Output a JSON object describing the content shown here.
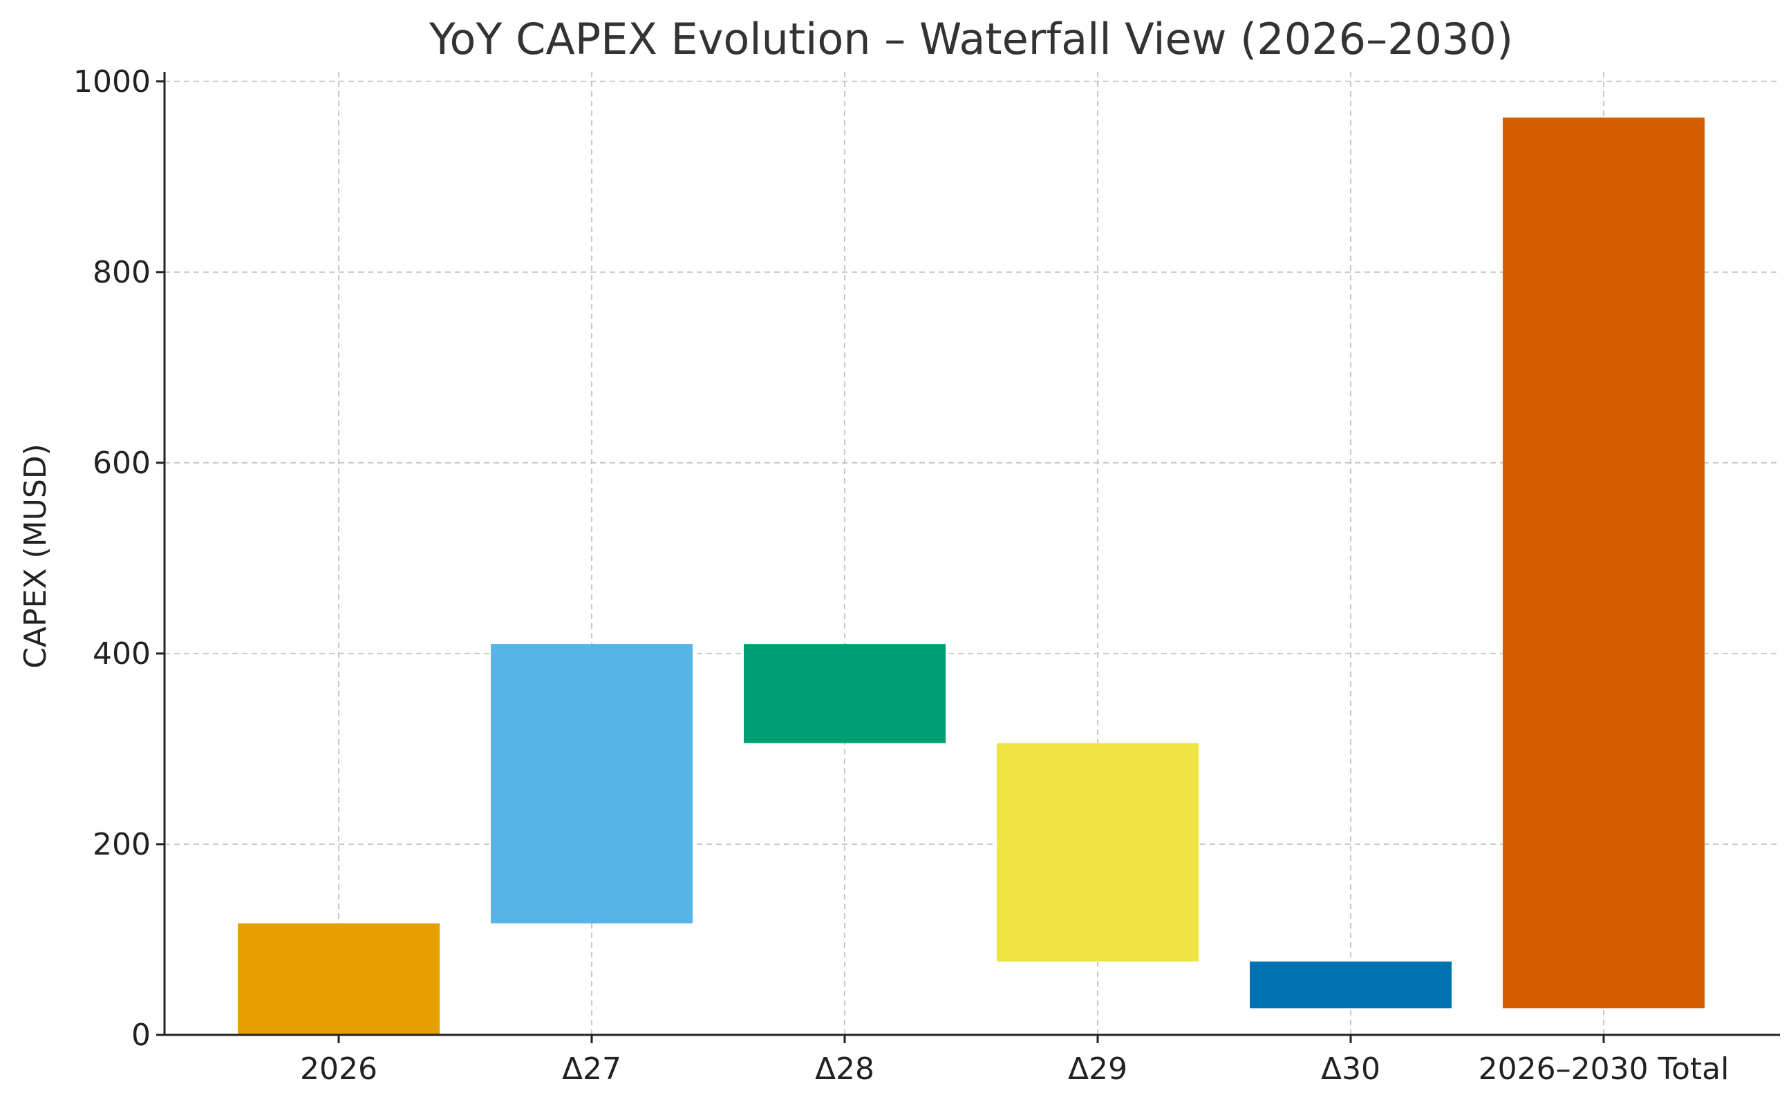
{
  "chart_data": {
    "type": "bar",
    "variant": "waterfall",
    "title": "YoY CAPEX Evolution – Waterfall View (2026–2030)",
    "xlabel": "",
    "ylabel": "CAPEX (MUSD)",
    "ylim": [
      0,
      1010
    ],
    "yticks": [
      0,
      200,
      400,
      600,
      800,
      1000
    ],
    "grid": true,
    "categories": [
      "2026",
      "Δ27",
      "Δ28",
      "Δ29",
      "Δ30",
      "2026–2030 Total"
    ],
    "bars": [
      {
        "category": "2026",
        "base": 0,
        "top": 117,
        "color": "#E69F00"
      },
      {
        "category": "Δ27",
        "base": 117,
        "top": 410,
        "color": "#56B4E9"
      },
      {
        "category": "Δ28",
        "base": 306,
        "top": 410,
        "color": "#009E73"
      },
      {
        "category": "Δ29",
        "base": 77,
        "top": 306,
        "color": "#F0E442"
      },
      {
        "category": "Δ30",
        "base": 28,
        "top": 77,
        "color": "#0072B2"
      },
      {
        "category": "2026–2030 Total",
        "base": 28,
        "top": 962,
        "color": "#D55E00"
      }
    ]
  }
}
